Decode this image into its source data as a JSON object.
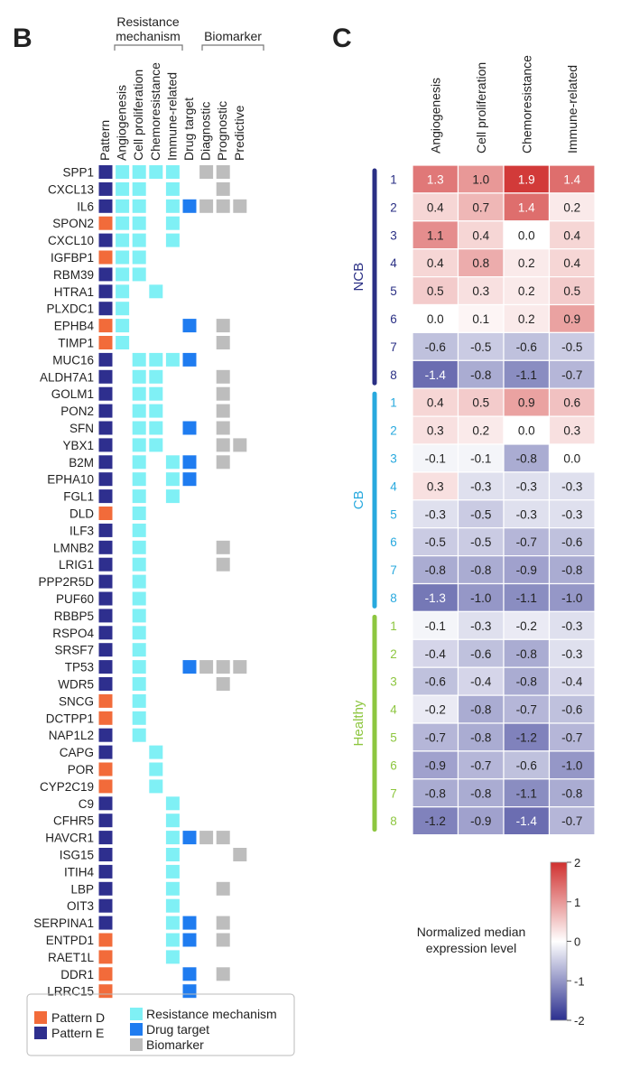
{
  "panel_b": {
    "label": "B",
    "group_headers": {
      "resistance": [
        "Resistance",
        "mechanism"
      ],
      "biomarker": "Biomarker"
    },
    "columns": [
      "Pattern",
      "Angiogenesis",
      "Cell proliferation",
      "Chemoresistance",
      "Immune-related",
      "Drug target",
      "Diagnostic",
      "Prognostic",
      "Predictive"
    ],
    "legend": {
      "pattern_d": "Pattern D",
      "pattern_e": "Pattern E",
      "resistance": "Resistance mechanism",
      "drug": "Drug target",
      "biomarker": "Biomarker"
    }
  },
  "panel_c": {
    "label": "C",
    "colorbar_label_lines": [
      "Normalized median",
      "expression level"
    ]
  },
  "colors": {
    "pattern_d": "#F26B3A",
    "pattern_e": "#2E2F8E",
    "resistance": "#7FF0F5",
    "drug": "#1F7CF0",
    "biomarker": "#BDBDBD",
    "ncb": "#2A2F84",
    "cb": "#28A9DE",
    "healthy": "#8DC63F"
  },
  "chart_data": [
    {
      "type": "table",
      "title": "",
      "columns": [
        "Pattern",
        "Angiogenesis",
        "Cell proliferation",
        "Chemoresistance",
        "Immune-related",
        "Drug target",
        "Diagnostic",
        "Prognostic",
        "Predictive"
      ],
      "genes": [
        {
          "name": "SPP1",
          "pattern": "E",
          "marks": [
            1,
            1,
            1,
            1,
            0,
            1,
            1,
            0
          ]
        },
        {
          "name": "CXCL13",
          "pattern": "E",
          "marks": [
            1,
            1,
            0,
            1,
            0,
            0,
            1,
            0
          ]
        },
        {
          "name": "IL6",
          "pattern": "E",
          "marks": [
            1,
            1,
            0,
            1,
            1,
            1,
            1,
            1
          ]
        },
        {
          "name": "SPON2",
          "pattern": "D",
          "marks": [
            1,
            1,
            0,
            1,
            0,
            0,
            0,
            0
          ]
        },
        {
          "name": "CXCL10",
          "pattern": "E",
          "marks": [
            1,
            1,
            0,
            1,
            0,
            0,
            0,
            0
          ]
        },
        {
          "name": "IGFBP1",
          "pattern": "D",
          "marks": [
            1,
            1,
            0,
            0,
            0,
            0,
            0,
            0
          ]
        },
        {
          "name": "RBM39",
          "pattern": "E",
          "marks": [
            1,
            1,
            0,
            0,
            0,
            0,
            0,
            0
          ]
        },
        {
          "name": "HTRA1",
          "pattern": "E",
          "marks": [
            1,
            0,
            1,
            0,
            0,
            0,
            0,
            0
          ]
        },
        {
          "name": "PLXDC1",
          "pattern": "E",
          "marks": [
            1,
            0,
            0,
            0,
            0,
            0,
            0,
            0
          ]
        },
        {
          "name": "EPHB4",
          "pattern": "D",
          "marks": [
            1,
            0,
            0,
            0,
            1,
            0,
            1,
            0
          ]
        },
        {
          "name": "TIMP1",
          "pattern": "D",
          "marks": [
            1,
            0,
            0,
            0,
            0,
            0,
            1,
            0
          ]
        },
        {
          "name": "MUC16",
          "pattern": "E",
          "marks": [
            0,
            1,
            1,
            1,
            1,
            0,
            0,
            0
          ]
        },
        {
          "name": "ALDH7A1",
          "pattern": "E",
          "marks": [
            0,
            1,
            1,
            0,
            0,
            0,
            1,
            0
          ]
        },
        {
          "name": "GOLM1",
          "pattern": "E",
          "marks": [
            0,
            1,
            1,
            0,
            0,
            0,
            1,
            0
          ]
        },
        {
          "name": "PON2",
          "pattern": "E",
          "marks": [
            0,
            1,
            1,
            0,
            0,
            0,
            1,
            0
          ]
        },
        {
          "name": "SFN",
          "pattern": "E",
          "marks": [
            0,
            1,
            1,
            0,
            1,
            0,
            1,
            0
          ]
        },
        {
          "name": "YBX1",
          "pattern": "E",
          "marks": [
            0,
            1,
            1,
            0,
            0,
            0,
            1,
            1
          ]
        },
        {
          "name": "B2M",
          "pattern": "E",
          "marks": [
            0,
            1,
            0,
            1,
            1,
            0,
            1,
            0
          ]
        },
        {
          "name": "EPHA10",
          "pattern": "E",
          "marks": [
            0,
            1,
            0,
            1,
            1,
            0,
            0,
            0
          ]
        },
        {
          "name": "FGL1",
          "pattern": "E",
          "marks": [
            0,
            1,
            0,
            1,
            0,
            0,
            0,
            0
          ]
        },
        {
          "name": "DLD",
          "pattern": "D",
          "marks": [
            0,
            1,
            0,
            0,
            0,
            0,
            0,
            0
          ]
        },
        {
          "name": "ILF3",
          "pattern": "E",
          "marks": [
            0,
            1,
            0,
            0,
            0,
            0,
            0,
            0
          ]
        },
        {
          "name": "LMNB2",
          "pattern": "E",
          "marks": [
            0,
            1,
            0,
            0,
            0,
            0,
            1,
            0
          ]
        },
        {
          "name": "LRIG1",
          "pattern": "E",
          "marks": [
            0,
            1,
            0,
            0,
            0,
            0,
            1,
            0
          ]
        },
        {
          "name": "PPP2R5D",
          "pattern": "E",
          "marks": [
            0,
            1,
            0,
            0,
            0,
            0,
            0,
            0
          ]
        },
        {
          "name": "PUF60",
          "pattern": "E",
          "marks": [
            0,
            1,
            0,
            0,
            0,
            0,
            0,
            0
          ]
        },
        {
          "name": "RBBP5",
          "pattern": "E",
          "marks": [
            0,
            1,
            0,
            0,
            0,
            0,
            0,
            0
          ]
        },
        {
          "name": "RSPO4",
          "pattern": "E",
          "marks": [
            0,
            1,
            0,
            0,
            0,
            0,
            0,
            0
          ]
        },
        {
          "name": "SRSF7",
          "pattern": "E",
          "marks": [
            0,
            1,
            0,
            0,
            0,
            0,
            0,
            0
          ]
        },
        {
          "name": "TP53",
          "pattern": "E",
          "marks": [
            0,
            1,
            0,
            0,
            1,
            1,
            1,
            1
          ]
        },
        {
          "name": "WDR5",
          "pattern": "E",
          "marks": [
            0,
            1,
            0,
            0,
            0,
            0,
            1,
            0
          ]
        },
        {
          "name": "SNCG",
          "pattern": "D",
          "marks": [
            0,
            1,
            0,
            0,
            0,
            0,
            0,
            0
          ]
        },
        {
          "name": "DCTPP1",
          "pattern": "D",
          "marks": [
            0,
            1,
            0,
            0,
            0,
            0,
            0,
            0
          ]
        },
        {
          "name": "NAP1L2",
          "pattern": "E",
          "marks": [
            0,
            1,
            0,
            0,
            0,
            0,
            0,
            0
          ]
        },
        {
          "name": "CAPG",
          "pattern": "E",
          "marks": [
            0,
            0,
            1,
            0,
            0,
            0,
            0,
            0
          ]
        },
        {
          "name": "POR",
          "pattern": "D",
          "marks": [
            0,
            0,
            1,
            0,
            0,
            0,
            0,
            0
          ]
        },
        {
          "name": "CYP2C19",
          "pattern": "D",
          "marks": [
            0,
            0,
            1,
            0,
            0,
            0,
            0,
            0
          ]
        },
        {
          "name": "C9",
          "pattern": "E",
          "marks": [
            0,
            0,
            0,
            1,
            0,
            0,
            0,
            0
          ]
        },
        {
          "name": "CFHR5",
          "pattern": "E",
          "marks": [
            0,
            0,
            0,
            1,
            0,
            0,
            0,
            0
          ]
        },
        {
          "name": "HAVCR1",
          "pattern": "E",
          "marks": [
            0,
            0,
            0,
            1,
            1,
            1,
            1,
            0
          ]
        },
        {
          "name": "ISG15",
          "pattern": "E",
          "marks": [
            0,
            0,
            0,
            1,
            0,
            0,
            0,
            1
          ]
        },
        {
          "name": "ITIH4",
          "pattern": "E",
          "marks": [
            0,
            0,
            0,
            1,
            0,
            0,
            0,
            0
          ]
        },
        {
          "name": "LBP",
          "pattern": "E",
          "marks": [
            0,
            0,
            0,
            1,
            0,
            0,
            1,
            0
          ]
        },
        {
          "name": "OIT3",
          "pattern": "E",
          "marks": [
            0,
            0,
            0,
            1,
            0,
            0,
            0,
            0
          ]
        },
        {
          "name": "SERPINA1",
          "pattern": "E",
          "marks": [
            0,
            0,
            0,
            1,
            1,
            0,
            1,
            0
          ]
        },
        {
          "name": "ENTPD1",
          "pattern": "D",
          "marks": [
            0,
            0,
            0,
            1,
            1,
            0,
            1,
            0
          ]
        },
        {
          "name": "RAET1L",
          "pattern": "D",
          "marks": [
            0,
            0,
            0,
            1,
            0,
            0,
            0,
            0
          ]
        },
        {
          "name": "DDR1",
          "pattern": "D",
          "marks": [
            0,
            0,
            0,
            0,
            1,
            0,
            1,
            0
          ]
        },
        {
          "name": "LRRC15",
          "pattern": "D",
          "marks": [
            0,
            0,
            0,
            0,
            1,
            0,
            0,
            0
          ]
        }
      ]
    },
    {
      "type": "heatmap",
      "title": "",
      "columns": [
        "Angiogenesis",
        "Cell proliferation",
        "Chemoresistance",
        "Immune-related"
      ],
      "groups": [
        {
          "name": "NCB",
          "rows": [
            {
              "label": "1",
              "values": [
                1.3,
                1.0,
                1.9,
                1.4
              ]
            },
            {
              "label": "2",
              "values": [
                0.4,
                0.7,
                1.4,
                0.2
              ]
            },
            {
              "label": "3",
              "values": [
                1.1,
                0.4,
                0.0,
                0.4
              ]
            },
            {
              "label": "4",
              "values": [
                0.4,
                0.8,
                0.2,
                0.4
              ]
            },
            {
              "label": "5",
              "values": [
                0.5,
                0.3,
                0.2,
                0.5
              ]
            },
            {
              "label": "6",
              "values": [
                0.0,
                0.1,
                0.2,
                0.9
              ]
            },
            {
              "label": "7",
              "values": [
                -0.6,
                -0.5,
                -0.6,
                -0.5
              ]
            },
            {
              "label": "8",
              "values": [
                -1.4,
                -0.8,
                -1.1,
                -0.7
              ]
            }
          ]
        },
        {
          "name": "CB",
          "rows": [
            {
              "label": "1",
              "values": [
                0.4,
                0.5,
                0.9,
                0.6
              ]
            },
            {
              "label": "2",
              "values": [
                0.3,
                0.2,
                0.0,
                0.3
              ]
            },
            {
              "label": "3",
              "values": [
                -0.1,
                -0.1,
                -0.8,
                0.0
              ]
            },
            {
              "label": "4",
              "values": [
                0.3,
                -0.3,
                -0.3,
                -0.3
              ]
            },
            {
              "label": "5",
              "values": [
                -0.3,
                -0.5,
                -0.3,
                -0.3
              ]
            },
            {
              "label": "6",
              "values": [
                -0.5,
                -0.5,
                -0.7,
                -0.6
              ]
            },
            {
              "label": "7",
              "values": [
                -0.8,
                -0.8,
                -0.9,
                -0.8
              ]
            },
            {
              "label": "8",
              "values": [
                -1.3,
                -1.0,
                -1.1,
                -1.0
              ]
            }
          ]
        },
        {
          "name": "Healthy",
          "rows": [
            {
              "label": "1",
              "values": [
                -0.1,
                -0.3,
                -0.2,
                -0.3
              ]
            },
            {
              "label": "2",
              "values": [
                -0.4,
                -0.6,
                -0.8,
                -0.3
              ]
            },
            {
              "label": "3",
              "values": [
                -0.6,
                -0.4,
                -0.8,
                -0.4
              ]
            },
            {
              "label": "4",
              "values": [
                -0.2,
                -0.8,
                -0.7,
                -0.6
              ]
            },
            {
              "label": "5",
              "values": [
                -0.7,
                -0.8,
                -1.2,
                -0.7
              ]
            },
            {
              "label": "6",
              "values": [
                -0.9,
                -0.7,
                -0.6,
                -1.0
              ]
            },
            {
              "label": "7",
              "values": [
                -0.8,
                -0.8,
                -1.1,
                -0.8
              ]
            },
            {
              "label": "8",
              "values": [
                -1.2,
                -0.9,
                -1.4,
                -0.7
              ]
            }
          ]
        }
      ],
      "colorbar": {
        "min": -2,
        "max": 2,
        "ticks": [
          "2",
          "1",
          "0",
          "-1",
          "-2"
        ],
        "low_color": "#2B2F8F",
        "mid_color": "#FFFFFF",
        "high_color": "#D0302F"
      }
    }
  ]
}
